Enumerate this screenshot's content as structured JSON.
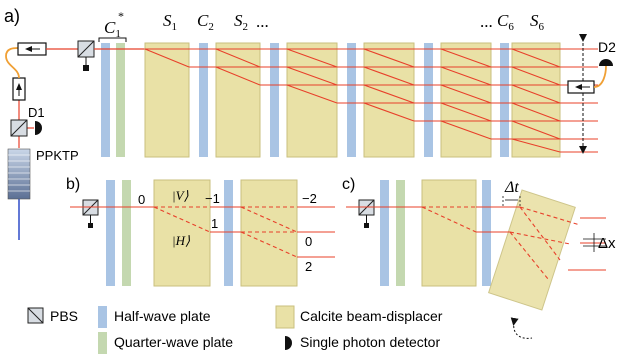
{
  "panels": {
    "a": "a)",
    "b": "b)",
    "c": "c)"
  },
  "labels_a": {
    "c1": "C",
    "c1_sub": "1",
    "c1_sup": "*",
    "s1": "S",
    "s1_sub": "1",
    "c2": "C",
    "c2_sub": "2",
    "s2": "S",
    "s2_sub": "2",
    "s2_dots": "...",
    "c6_dots": "...",
    "c6": "C",
    "c6_sub": "6",
    "s6": "S",
    "s6_sub": "6",
    "d1": "D1",
    "d2": "D2",
    "ppktp": "PPKTP"
  },
  "labels_b": {
    "zero_left": "0",
    "v_state": "|V⟩",
    "h_state": "|H⟩",
    "minus1": "−1",
    "one": "1",
    "minus2": "−2",
    "zero_right": "0",
    "two": "2"
  },
  "labels_c": {
    "delta_t": "Δt",
    "delta_x": "Δx"
  },
  "legend": {
    "pbs": "PBS",
    "hwp": "Half-wave plate",
    "qwp": "Quarter-wave plate",
    "calcite": "Calcite beam-displacer",
    "spd": "Single photon detector"
  },
  "colors": {
    "half_wave_plate": "#a9c4e4",
    "quarter_wave_plate": "#c4d8b0",
    "calcite": "#e9e1a6",
    "calcite_border": "#c9bf7e",
    "beam": "#e8402a",
    "pump": "#2f4cc8",
    "fiber": "#f0a035"
  }
}
